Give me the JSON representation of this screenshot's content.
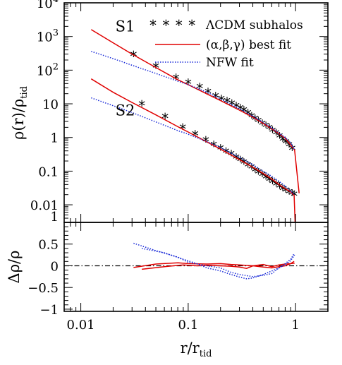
{
  "chart_data": [
    {
      "type": "line",
      "xscale": "log",
      "yscale": "log",
      "xlim": [
        0.007,
        2.0
      ],
      "ylim": [
        0.003,
        10000
      ],
      "ylabel": {
        "main": "ρ(r)/ρ",
        "sub": "tid"
      },
      "y_ticks": [
        {
          "value": 10000,
          "base": "10",
          "exp": "4"
        },
        {
          "value": 1000,
          "base": "10",
          "exp": "3"
        },
        {
          "value": 100,
          "base": "10",
          "exp": "2"
        },
        {
          "value": 10,
          "base": "10",
          "exp": ""
        },
        {
          "value": 1,
          "base": "1",
          "exp": ""
        },
        {
          "value": 0.1,
          "base": "0.1",
          "exp": ""
        },
        {
          "value": 0.01,
          "base": "0.01",
          "exp": ""
        },
        {
          "value": 0.003,
          "base": "1",
          "exp": ""
        }
      ],
      "legend": {
        "placement": "top-right",
        "entries": [
          {
            "marker": "* * * *",
            "label": "ΛCDM subhalos",
            "style": "star",
            "color": "#000000"
          },
          {
            "label": "(α,β,γ) best fit",
            "style": "solid",
            "color": "#e00000"
          },
          {
            "label": "NFW fit",
            "style": "dotted",
            "color": "#1a2bd8"
          }
        ]
      },
      "annotations": [
        {
          "text": "S1",
          "x": 0.021,
          "y": 1400
        },
        {
          "text": "S2",
          "x": 0.021,
          "y": 4.5
        }
      ],
      "series": [
        {
          "style": "star",
          "color": "#000000",
          "x": [
            0.031,
            0.05,
            0.077,
            0.1,
            0.128,
            0.153,
            0.18,
            0.204,
            0.23,
            0.255,
            0.28,
            0.306,
            0.33,
            0.36,
            0.39,
            0.42,
            0.45,
            0.49,
            0.53,
            0.57,
            0.61,
            0.66,
            0.71,
            0.76,
            0.81,
            0.87,
            0.93
          ],
          "y": [
            270,
            120,
            56,
            40,
            30,
            21,
            16,
            13,
            11.3,
            9.5,
            8.1,
            7.0,
            6.1,
            5.0,
            4.0,
            3.4,
            2.9,
            2.4,
            2.1,
            1.8,
            1.5,
            1.25,
            1.02,
            0.82,
            0.68,
            0.55,
            0.43
          ]
        },
        {
          "style": "star",
          "color": "#000000",
          "x": [
            0.037,
            0.061,
            0.089,
            0.116,
            0.146,
            0.173,
            0.2,
            0.225,
            0.252,
            0.28,
            0.306,
            0.33,
            0.36,
            0.39,
            0.42,
            0.45,
            0.49,
            0.53,
            0.57,
            0.61,
            0.66,
            0.71,
            0.76,
            0.81,
            0.87,
            0.93,
            0.97
          ],
          "y": [
            9,
            3.8,
            1.85,
            1.18,
            0.77,
            0.56,
            0.44,
            0.36,
            0.3,
            0.24,
            0.2,
            0.17,
            0.14,
            0.12,
            0.1,
            0.086,
            0.072,
            0.062,
            0.052,
            0.045,
            0.038,
            0.033,
            0.028,
            0.025,
            0.022,
            0.02,
            0.019
          ]
        },
        {
          "style": "solid",
          "color": "#e00000",
          "x": [
            0.0125,
            0.02,
            0.03,
            0.05,
            0.08,
            0.1,
            0.15,
            0.2,
            0.3,
            0.4,
            0.5,
            0.6,
            0.7,
            0.8,
            0.9,
            0.98,
            1.08
          ],
          "y": [
            1600,
            650,
            300,
            120,
            52,
            37,
            19.5,
            12.5,
            6.5,
            4.0,
            2.6,
            1.8,
            1.3,
            0.95,
            0.6,
            0.42,
            0.022
          ]
        },
        {
          "style": "solid",
          "color": "#e00000",
          "x": [
            0.0125,
            0.02,
            0.03,
            0.05,
            0.08,
            0.1,
            0.15,
            0.2,
            0.3,
            0.4,
            0.5,
            0.6,
            0.7,
            0.8,
            0.9,
            0.97,
            0.99
          ],
          "y": [
            55,
            22,
            11,
            4.7,
            2.1,
            1.45,
            0.73,
            0.45,
            0.22,
            0.13,
            0.085,
            0.058,
            0.04,
            0.03,
            0.024,
            0.019,
            0.003
          ]
        },
        {
          "style": "dotted",
          "color": "#1a2bd8",
          "x": [
            0.0125,
            0.02,
            0.03,
            0.05,
            0.08,
            0.1,
            0.15,
            0.2,
            0.3,
            0.4,
            0.5,
            0.6,
            0.7,
            0.8,
            0.9,
            0.98
          ],
          "y": [
            360,
            220,
            140,
            80,
            47,
            37,
            22,
            14,
            7.2,
            4.3,
            2.8,
            1.9,
            1.35,
            1.0,
            0.7,
            0.42
          ]
        },
        {
          "style": "dotted",
          "color": "#1a2bd8",
          "x": [
            0.0125,
            0.02,
            0.03,
            0.05,
            0.08,
            0.1,
            0.15,
            0.2,
            0.3,
            0.4,
            0.5,
            0.6,
            0.7,
            0.8,
            0.9,
            0.97
          ],
          "y": [
            15,
            8.8,
            5.5,
            2.9,
            1.6,
            1.25,
            0.75,
            0.5,
            0.26,
            0.155,
            0.1,
            0.07,
            0.05,
            0.036,
            0.026,
            0.02
          ]
        }
      ]
    },
    {
      "type": "line",
      "xscale": "log",
      "xlim": [
        0.007,
        2.0
      ],
      "ylim": [
        -1.05,
        1.0
      ],
      "xlabel": {
        "main": "r/r",
        "sub": "tid"
      },
      "ylabel": "Δρ/ρ",
      "x_ticks": [
        {
          "value": 0.01,
          "label": "0.01"
        },
        {
          "value": 0.1,
          "label": "0.1"
        },
        {
          "value": 1,
          "label": "1"
        }
      ],
      "y_ticks": [
        {
          "value": 0.5,
          "label": "0.5"
        },
        {
          "value": 0,
          "label": "0"
        },
        {
          "value": -0.5,
          "label": "−0.5"
        },
        {
          "value": -1,
          "label": "−1"
        }
      ],
      "reference_line": {
        "y": 0,
        "style": "dashdot"
      },
      "series": [
        {
          "style": "solid",
          "color": "#e00000",
          "x": [
            0.031,
            0.05,
            0.08,
            0.1,
            0.15,
            0.2,
            0.25,
            0.3,
            0.4,
            0.5,
            0.6,
            0.7,
            0.8,
            0.9,
            0.98
          ],
          "y": [
            -0.04,
            0.04,
            0.07,
            0.05,
            0.04,
            0.05,
            0.03,
            0.02,
            0.0,
            0.03,
            -0.02,
            0.02,
            0.04,
            0.05,
            0.06
          ]
        },
        {
          "style": "solid",
          "color": "#e00000",
          "x": [
            0.037,
            0.06,
            0.09,
            0.12,
            0.15,
            0.2,
            0.25,
            0.3,
            0.35,
            0.4,
            0.5,
            0.6,
            0.7,
            0.8,
            0.9,
            0.97
          ],
          "y": [
            -0.08,
            -0.02,
            0.02,
            0.0,
            0.01,
            0.0,
            -0.01,
            -0.03,
            -0.06,
            0.0,
            -0.03,
            -0.05,
            -0.02,
            0.0,
            0.05,
            0.1
          ]
        },
        {
          "style": "dotted",
          "color": "#1a2bd8",
          "x": [
            0.031,
            0.05,
            0.08,
            0.1,
            0.15,
            0.2,
            0.25,
            0.3,
            0.4,
            0.5,
            0.6,
            0.7,
            0.8,
            0.9,
            0.98
          ],
          "y": [
            0.52,
            0.35,
            0.2,
            0.08,
            0.0,
            -0.05,
            -0.15,
            -0.2,
            -0.25,
            -0.22,
            -0.18,
            -0.05,
            0.02,
            0.12,
            0.25
          ]
        },
        {
          "style": "dotted",
          "color": "#1a2bd8",
          "x": [
            0.037,
            0.06,
            0.09,
            0.12,
            0.15,
            0.2,
            0.25,
            0.3,
            0.35,
            0.4,
            0.5,
            0.6,
            0.7,
            0.8,
            0.9,
            0.97
          ],
          "y": [
            0.4,
            0.3,
            0.15,
            0.05,
            -0.05,
            -0.12,
            -0.2,
            -0.26,
            -0.3,
            -0.28,
            -0.2,
            -0.12,
            -0.05,
            0.05,
            0.15,
            0.28
          ]
        }
      ]
    }
  ]
}
